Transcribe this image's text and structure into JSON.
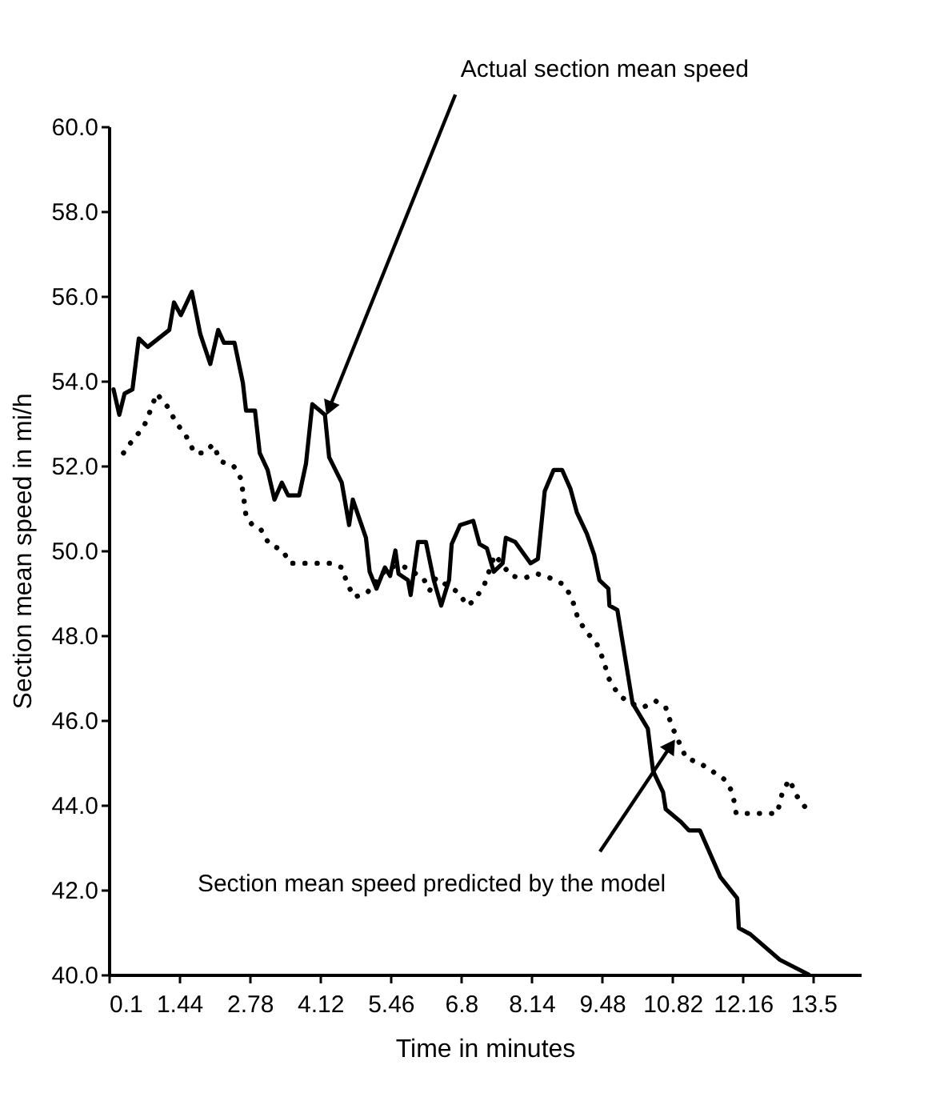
{
  "chart_data": {
    "type": "line",
    "xlabel": "Time in minutes",
    "ylabel": "Section mean speed in mi/h",
    "xlim": [
      0.1,
      14.4
    ],
    "ylim": [
      40,
      60
    ],
    "xticks": [
      0.1,
      1.44,
      2.78,
      4.12,
      5.46,
      6.8,
      8.14,
      9.48,
      10.82,
      12.16,
      13.5
    ],
    "yticks": [
      {
        "value": 40,
        "label": "40.0"
      },
      {
        "value": 42,
        "label": "42.0"
      },
      {
        "value": 44,
        "label": "44.0"
      },
      {
        "value": 46,
        "label": "46.0"
      },
      {
        "value": 48,
        "label": "48.0"
      },
      {
        "value": 50,
        "label": "50.0"
      },
      {
        "value": 52,
        "label": "52.0"
      },
      {
        "value": 54,
        "label": "54.0"
      },
      {
        "value": 56,
        "label": "56.0"
      },
      {
        "value": 58,
        "label": "58.0"
      },
      {
        "value": 60,
        "label": "60.0"
      }
    ],
    "grid": false,
    "marker": "none",
    "series": [
      {
        "color": "#000000",
        "line_style": "solid",
        "x": [
          0.19,
          0.3,
          0.4,
          0.55,
          0.67,
          0.84,
          1.25,
          1.34,
          1.47,
          1.68,
          1.84,
          2.03,
          2.18,
          2.29,
          2.49,
          2.65,
          2.71,
          2.88,
          2.97,
          3.12,
          3.25,
          3.39,
          3.51,
          3.72,
          3.85,
          3.97,
          4.21,
          4.29,
          4.53,
          4.67,
          4.74,
          4.99,
          5.06,
          5.19,
          5.35,
          5.45,
          5.55,
          5.61,
          5.79,
          5.84,
          5.98,
          6.13,
          6.28,
          6.42,
          6.57,
          6.62,
          6.78,
          7.03,
          7.15,
          7.29,
          7.42,
          7.59,
          7.65,
          7.83,
          8.12,
          8.26,
          8.39,
          8.56,
          8.72,
          8.88,
          9.0,
          9.19,
          9.33,
          9.43,
          9.6,
          9.62,
          9.77,
          10.06,
          10.35,
          10.45,
          10.64,
          10.69,
          10.98,
          11.13,
          11.34,
          11.73,
          12.05,
          12.08,
          12.3,
          12.86,
          13.41
        ],
        "values": [
          53.8,
          53.2,
          53.7,
          53.8,
          55.0,
          54.8,
          55.2,
          55.85,
          55.55,
          56.1,
          55.1,
          54.4,
          55.2,
          54.9,
          54.9,
          53.95,
          53.3,
          53.3,
          52.3,
          51.9,
          51.2,
          51.6,
          51.3,
          51.3,
          52.05,
          53.45,
          53.2,
          52.2,
          51.6,
          50.6,
          51.2,
          50.3,
          49.5,
          49.1,
          49.6,
          49.4,
          50.0,
          49.45,
          49.3,
          48.95,
          50.2,
          50.2,
          49.3,
          48.7,
          49.3,
          50.15,
          50.6,
          50.7,
          50.15,
          50.05,
          49.5,
          49.7,
          50.3,
          50.2,
          49.7,
          49.8,
          51.4,
          51.9,
          51.9,
          51.45,
          50.9,
          50.4,
          49.9,
          49.3,
          49.1,
          48.7,
          48.6,
          46.4,
          45.8,
          44.8,
          44.3,
          43.9,
          43.6,
          43.4,
          43.4,
          42.3,
          41.8,
          41.1,
          40.95,
          40.35,
          40.0
        ]
      },
      {
        "color": "#000000",
        "line_style": "dotted",
        "x": [
          0.38,
          0.55,
          0.76,
          0.89,
          1.01,
          1.21,
          1.39,
          1.57,
          1.73,
          1.91,
          2.08,
          2.23,
          2.47,
          2.61,
          2.66,
          2.71,
          2.83,
          2.99,
          3.15,
          3.41,
          3.54,
          3.8,
          4.04,
          4.3,
          4.53,
          4.64,
          4.77,
          5.01,
          5.4,
          5.67,
          6.08,
          6.2,
          6.32,
          6.76,
          6.91,
          7.03,
          7.23,
          7.44,
          7.75,
          8.0,
          8.25,
          8.49,
          8.75,
          8.9,
          9.02,
          9.17,
          9.38,
          9.51,
          9.6,
          9.79,
          10.01,
          10.26,
          10.5,
          10.69,
          10.81,
          11.08,
          11.32,
          11.57,
          11.81,
          11.96,
          12.03,
          12.29,
          12.56,
          12.81,
          12.91,
          13.04,
          13.19,
          13.37
        ],
        "values": [
          52.3,
          52.6,
          52.9,
          53.3,
          53.7,
          53.4,
          53.0,
          52.7,
          52.3,
          52.3,
          52.5,
          52.1,
          52.0,
          51.7,
          51.3,
          50.8,
          50.6,
          50.5,
          50.15,
          50.0,
          49.7,
          49.7,
          49.7,
          49.7,
          49.6,
          49.2,
          48.9,
          49.0,
          49.6,
          49.65,
          49.35,
          49.05,
          49.35,
          49.0,
          48.7,
          48.8,
          49.15,
          49.9,
          49.4,
          49.35,
          49.45,
          49.35,
          49.2,
          48.9,
          48.4,
          48.1,
          47.8,
          47.4,
          47.0,
          46.6,
          46.4,
          46.3,
          46.45,
          46.3,
          45.85,
          45.1,
          45.0,
          44.8,
          44.6,
          44.3,
          43.8,
          43.8,
          43.8,
          43.8,
          44.3,
          44.6,
          44.2,
          43.9
        ]
      }
    ],
    "annotations": [
      {
        "text": "Actual section mean speed",
        "x": 4.29,
        "y": 53.35
      },
      {
        "text": "Section mean speed predicted by the model",
        "x": 10.79,
        "y": 45.4
      }
    ]
  }
}
